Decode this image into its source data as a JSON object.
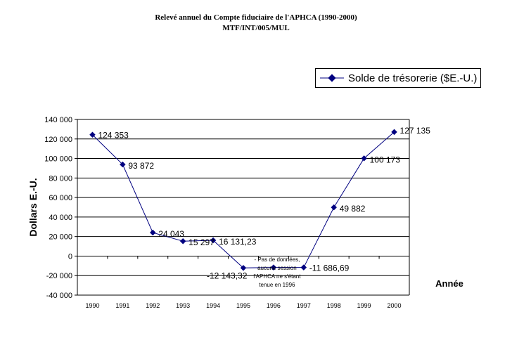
{
  "chart_data": {
    "type": "line",
    "title": "Relevé annuel du Compte fiduciaire de l'APHCA (1990-2000)",
    "subtitle": "MTF/INT/005/MUL",
    "xlabel": "Année",
    "ylabel": "Dollars E.-U.",
    "ylim": [
      -40000,
      140000
    ],
    "yticks": [
      140000,
      120000,
      100000,
      80000,
      60000,
      40000,
      20000,
      0,
      -20000,
      -40000
    ],
    "ytick_labels": [
      "140 000",
      "120 000",
      "100 000",
      "80 000",
      "60 000",
      "40 000",
      "20 000",
      "0",
      "-20 000",
      "-40 000"
    ],
    "categories": [
      "1990",
      "1991",
      "1992",
      "1993",
      "1994",
      "1995",
      "1996",
      "1997",
      "1998",
      "1999",
      "2000"
    ],
    "grid": true,
    "legend_position": "top-right",
    "series": [
      {
        "name": "Solde de trésorerie ($E.-U.)",
        "color": "#000080",
        "values": [
          124353,
          93872,
          24043,
          15297,
          16131.23,
          -12143.32,
          -11686.69,
          -11686.69,
          49882,
          100173,
          127135
        ],
        "data_labels": [
          "124 353",
          "93 872",
          "24 043",
          "15 297",
          "16 131,23",
          "-12 143,32",
          "",
          "-11 686,69",
          "49 882",
          "100 173",
          "127 135"
        ]
      }
    ],
    "annotation": {
      "category": "1996",
      "lines": [
        "- Pas de données,",
        "aucune session",
        "l'APHCA ne s'étant",
        "tenue en 1996"
      ]
    }
  }
}
